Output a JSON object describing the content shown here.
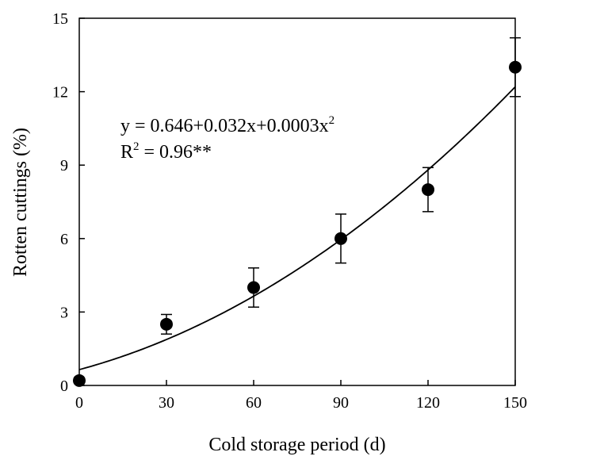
{
  "chart_data": {
    "type": "scatter",
    "xlabel": "Cold storage period (d)",
    "ylabel": "Rotten cuttings (%)",
    "xlim": [
      0,
      150
    ],
    "ylim": [
      0,
      15
    ],
    "xticks": [
      "0",
      "30",
      "60",
      "90",
      "120",
      "150"
    ],
    "yticks": [
      "0",
      "3",
      "6",
      "9",
      "12",
      "15"
    ],
    "grid": false,
    "legend": "none",
    "series": [
      {
        "x": [
          0,
          30,
          60,
          90,
          120,
          150
        ],
        "y": [
          0.2,
          2.5,
          4.0,
          6.0,
          8.0,
          13.0
        ],
        "error": [
          0.0,
          0.4,
          0.8,
          1.0,
          0.9,
          1.2
        ],
        "marker": "filled-circle",
        "color": "#000000"
      }
    ],
    "fit": {
      "type": "quadratic",
      "intercept": 0.646,
      "linear": 0.032,
      "quadratic": 0.0003,
      "equation_prefix": "y = 0.646+0.032x+0.0003x",
      "equation_exponent": "2",
      "r2_prefix": "R",
      "r2_exponent": "2",
      "r2_suffix": " = 0.96**"
    }
  }
}
